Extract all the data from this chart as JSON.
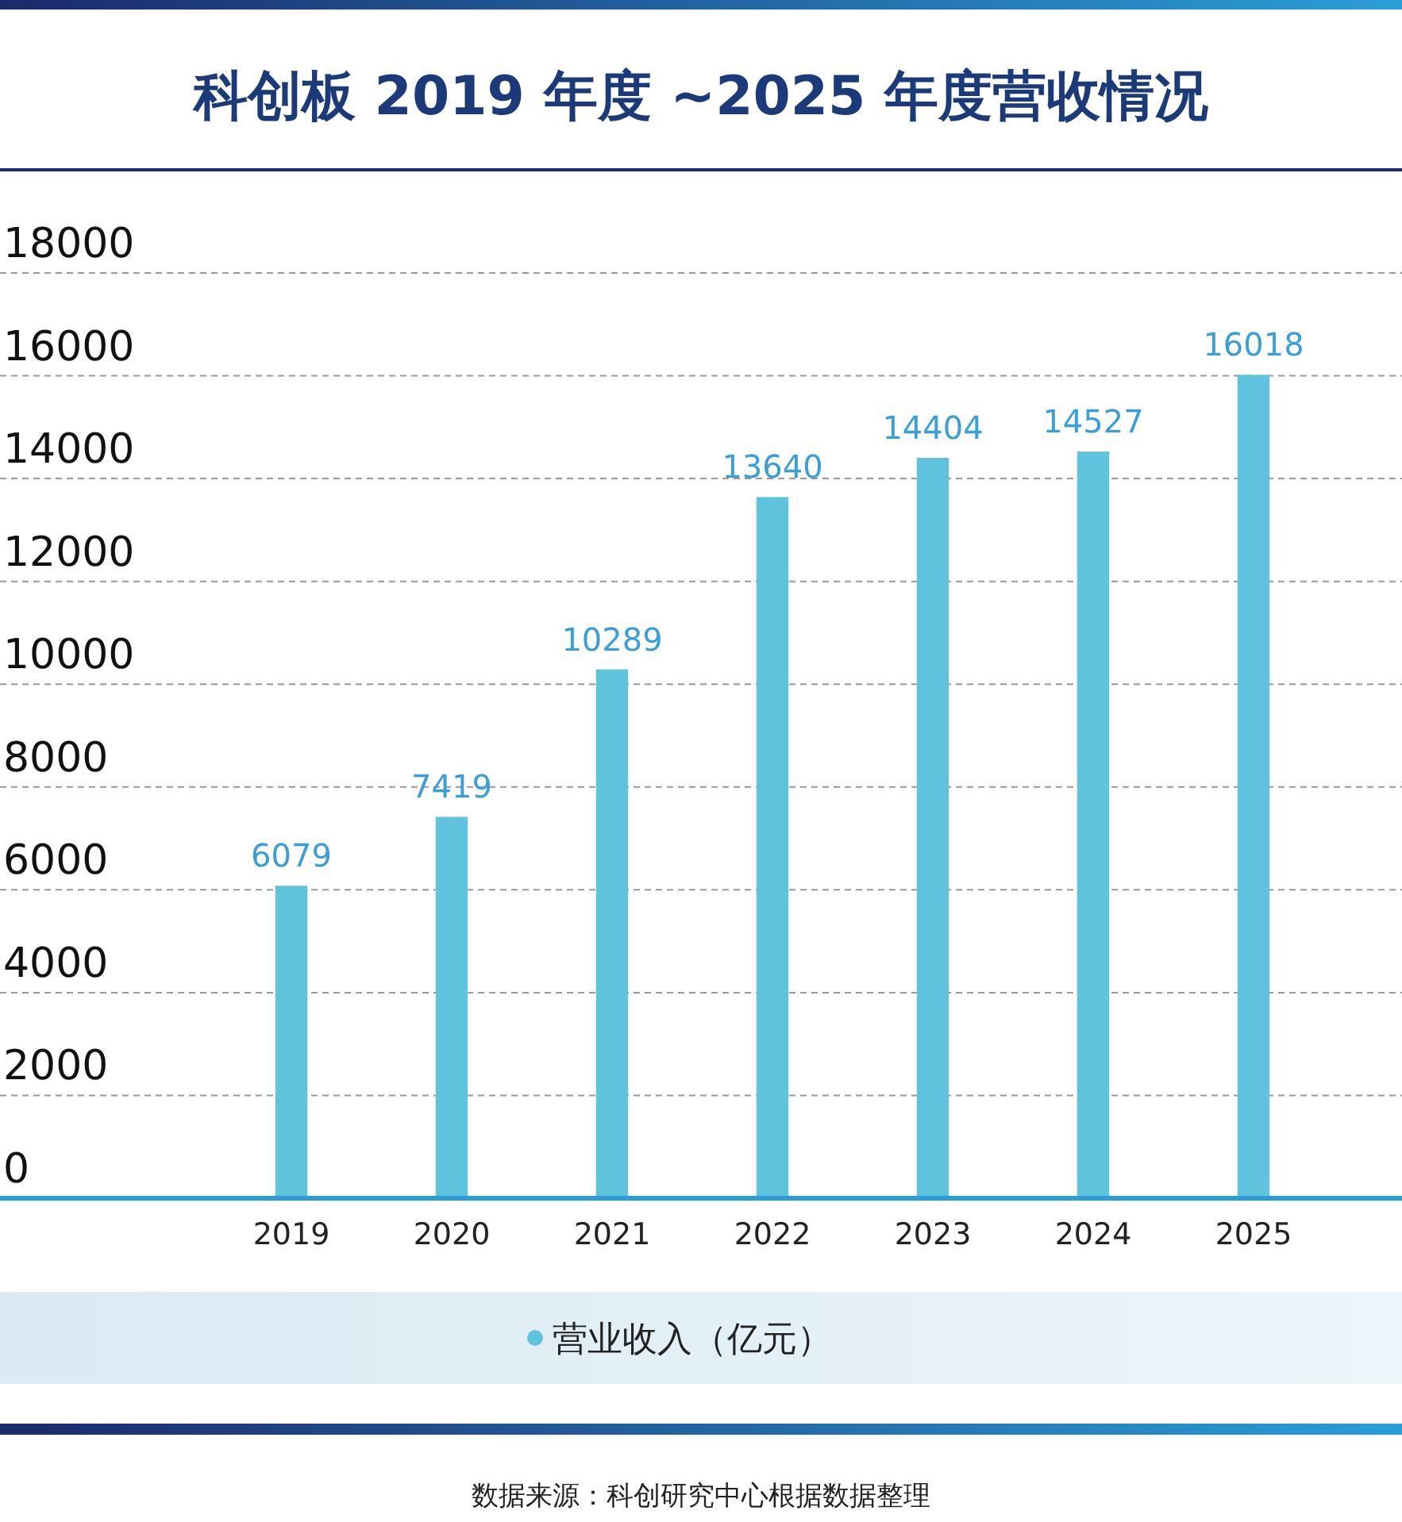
{
  "chart_data": {
    "type": "bar",
    "title": "科创板 2019 年度 ~2025 年度营收情况",
    "categories": [
      "2019",
      "2020",
      "2021",
      "2022",
      "2023",
      "2024",
      "2025"
    ],
    "series": [
      {
        "name": "营业收入（亿元）",
        "color": "#5fc3de",
        "values": [
          6079,
          7419,
          10289,
          13640,
          14404,
          14527,
          16018
        ]
      }
    ],
    "ylim": [
      0,
      18000
    ],
    "yticks": [
      0,
      2000,
      4000,
      6000,
      8000,
      10000,
      12000,
      14000,
      16000,
      18000
    ],
    "grid": "y",
    "legend": "bottom",
    "data_labels": true,
    "annotations": [
      "数据来源：科创研究中心根据数据整理"
    ]
  }
}
